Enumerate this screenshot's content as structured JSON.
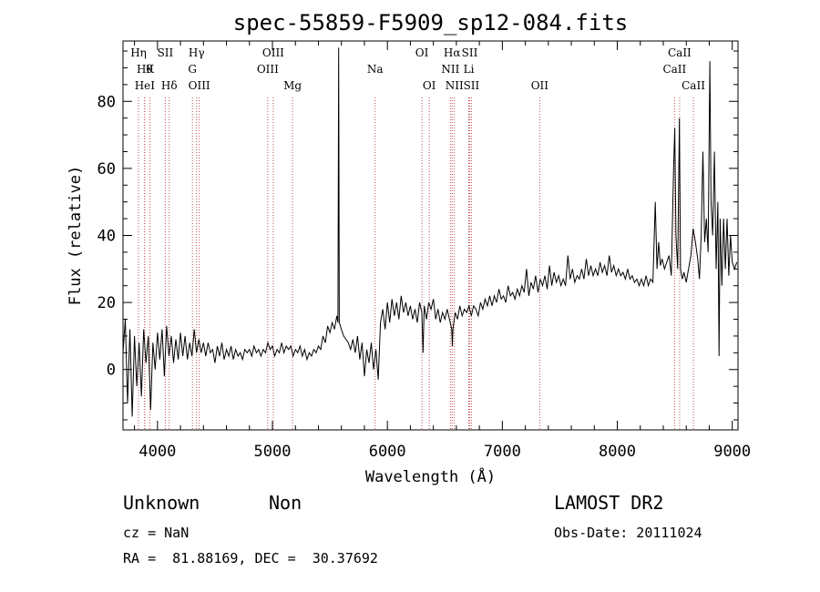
{
  "chart_data": {
    "type": "line",
    "title": "spec-55859-F5909_sp12-084.fits",
    "xlabel": "Wavelength (Å)",
    "ylabel": "Flux (relative)",
    "xlim": [
      3700,
      9050
    ],
    "ylim": [
      -18,
      98
    ],
    "xticks": [
      4000,
      5000,
      6000,
      7000,
      8000,
      9000
    ],
    "yticks": [
      0,
      20,
      40,
      60,
      80
    ],
    "grid": false,
    "line_color": "#000000",
    "marker_color": "#c0504d",
    "series": [
      {
        "values": [
          [
            3700,
            5
          ],
          [
            3720,
            15
          ],
          [
            3740,
            -10
          ],
          [
            3760,
            12
          ],
          [
            3780,
            -14
          ],
          [
            3800,
            10
          ],
          [
            3820,
            -5
          ],
          [
            3840,
            8
          ],
          [
            3860,
            -8
          ],
          [
            3880,
            12
          ],
          [
            3900,
            2
          ],
          [
            3920,
            10
          ],
          [
            3940,
            -12
          ],
          [
            3960,
            8
          ],
          [
            3980,
            0
          ],
          [
            4000,
            11
          ],
          [
            4020,
            3
          ],
          [
            4040,
            12
          ],
          [
            4060,
            -2
          ],
          [
            4080,
            13
          ],
          [
            4100,
            4
          ],
          [
            4120,
            10
          ],
          [
            4140,
            2
          ],
          [
            4160,
            9
          ],
          [
            4180,
            3
          ],
          [
            4200,
            11
          ],
          [
            4220,
            4
          ],
          [
            4240,
            10
          ],
          [
            4260,
            3
          ],
          [
            4280,
            8
          ],
          [
            4300,
            4
          ],
          [
            4320,
            12
          ],
          [
            4340,
            5
          ],
          [
            4360,
            9
          ],
          [
            4380,
            5
          ],
          [
            4400,
            8
          ],
          [
            4420,
            4
          ],
          [
            4440,
            8
          ],
          [
            4460,
            5
          ],
          [
            4480,
            6
          ],
          [
            4500,
            2
          ],
          [
            4520,
            7
          ],
          [
            4540,
            4
          ],
          [
            4560,
            8
          ],
          [
            4580,
            3
          ],
          [
            4600,
            6
          ],
          [
            4620,
            4
          ],
          [
            4640,
            7
          ],
          [
            4660,
            3
          ],
          [
            4680,
            6
          ],
          [
            4700,
            4
          ],
          [
            4720,
            5
          ],
          [
            4740,
            3
          ],
          [
            4760,
            6
          ],
          [
            4780,
            5
          ],
          [
            4800,
            6
          ],
          [
            4820,
            4
          ],
          [
            4840,
            7
          ],
          [
            4860,
            5
          ],
          [
            4880,
            6
          ],
          [
            4900,
            4
          ],
          [
            4920,
            6
          ],
          [
            4940,
            5
          ],
          [
            4960,
            8
          ],
          [
            4980,
            6
          ],
          [
            5000,
            7
          ],
          [
            5020,
            4
          ],
          [
            5040,
            6
          ],
          [
            5060,
            5
          ],
          [
            5080,
            8
          ],
          [
            5100,
            5
          ],
          [
            5120,
            7
          ],
          [
            5140,
            6
          ],
          [
            5160,
            7
          ],
          [
            5180,
            4
          ],
          [
            5200,
            6
          ],
          [
            5220,
            5
          ],
          [
            5240,
            7
          ],
          [
            5260,
            4
          ],
          [
            5280,
            6
          ],
          [
            5300,
            3
          ],
          [
            5320,
            5
          ],
          [
            5340,
            4
          ],
          [
            5360,
            6
          ],
          [
            5380,
            5
          ],
          [
            5400,
            7
          ],
          [
            5420,
            6
          ],
          [
            5440,
            10
          ],
          [
            5460,
            8
          ],
          [
            5480,
            13
          ],
          [
            5500,
            11
          ],
          [
            5520,
            14
          ],
          [
            5540,
            12
          ],
          [
            5560,
            16
          ],
          [
            5570,
            14
          ],
          [
            5576,
            96
          ],
          [
            5582,
            14
          ],
          [
            5600,
            12
          ],
          [
            5620,
            10
          ],
          [
            5640,
            9
          ],
          [
            5660,
            8
          ],
          [
            5680,
            6
          ],
          [
            5700,
            9
          ],
          [
            5720,
            5
          ],
          [
            5740,
            10
          ],
          [
            5760,
            3
          ],
          [
            5780,
            8
          ],
          [
            5800,
            -2
          ],
          [
            5820,
            6
          ],
          [
            5840,
            2
          ],
          [
            5860,
            8
          ],
          [
            5880,
            0
          ],
          [
            5900,
            6
          ],
          [
            5920,
            -3
          ],
          [
            5940,
            14
          ],
          [
            5960,
            18
          ],
          [
            5980,
            12
          ],
          [
            6000,
            20
          ],
          [
            6020,
            14
          ],
          [
            6040,
            21
          ],
          [
            6060,
            16
          ],
          [
            6080,
            20
          ],
          [
            6100,
            15
          ],
          [
            6120,
            22
          ],
          [
            6140,
            17
          ],
          [
            6160,
            20
          ],
          [
            6180,
            16
          ],
          [
            6200,
            19
          ],
          [
            6220,
            15
          ],
          [
            6240,
            18
          ],
          [
            6260,
            14
          ],
          [
            6280,
            20
          ],
          [
            6300,
            17
          ],
          [
            6310,
            5
          ],
          [
            6320,
            19
          ],
          [
            6340,
            15
          ],
          [
            6360,
            20
          ],
          [
            6380,
            18
          ],
          [
            6400,
            21
          ],
          [
            6420,
            15
          ],
          [
            6440,
            18
          ],
          [
            6460,
            14
          ],
          [
            6480,
            17
          ],
          [
            6500,
            15
          ],
          [
            6520,
            18
          ],
          [
            6540,
            15
          ],
          [
            6560,
            12
          ],
          [
            6565,
            7
          ],
          [
            6570,
            12
          ],
          [
            6590,
            17
          ],
          [
            6610,
            15
          ],
          [
            6630,
            19
          ],
          [
            6650,
            16
          ],
          [
            6670,
            18
          ],
          [
            6690,
            17
          ],
          [
            6710,
            19
          ],
          [
            6730,
            16
          ],
          [
            6750,
            19
          ],
          [
            6770,
            18
          ],
          [
            6790,
            16
          ],
          [
            6810,
            20
          ],
          [
            6830,
            18
          ],
          [
            6850,
            21
          ],
          [
            6870,
            19
          ],
          [
            6890,
            22
          ],
          [
            6910,
            19
          ],
          [
            6930,
            22
          ],
          [
            6950,
            20
          ],
          [
            6970,
            24
          ],
          [
            6990,
            21
          ],
          [
            7010,
            22
          ],
          [
            7030,
            20
          ],
          [
            7050,
            25
          ],
          [
            7070,
            22
          ],
          [
            7090,
            23
          ],
          [
            7110,
            21
          ],
          [
            7130,
            24
          ],
          [
            7150,
            22
          ],
          [
            7170,
            25
          ],
          [
            7190,
            23
          ],
          [
            7210,
            30
          ],
          [
            7230,
            22
          ],
          [
            7250,
            26
          ],
          [
            7270,
            24
          ],
          [
            7290,
            28
          ],
          [
            7310,
            23
          ],
          [
            7330,
            27
          ],
          [
            7350,
            25
          ],
          [
            7370,
            28
          ],
          [
            7390,
            24
          ],
          [
            7410,
            31
          ],
          [
            7430,
            25
          ],
          [
            7450,
            29
          ],
          [
            7470,
            26
          ],
          [
            7490,
            28
          ],
          [
            7510,
            25
          ],
          [
            7530,
            27
          ],
          [
            7550,
            25
          ],
          [
            7570,
            34
          ],
          [
            7590,
            27
          ],
          [
            7610,
            30
          ],
          [
            7630,
            26
          ],
          [
            7650,
            28
          ],
          [
            7670,
            27
          ],
          [
            7690,
            30
          ],
          [
            7710,
            27
          ],
          [
            7730,
            33
          ],
          [
            7750,
            28
          ],
          [
            7770,
            31
          ],
          [
            7790,
            28
          ],
          [
            7810,
            30
          ],
          [
            7830,
            28
          ],
          [
            7850,
            32
          ],
          [
            7870,
            29
          ],
          [
            7890,
            31
          ],
          [
            7910,
            28
          ],
          [
            7930,
            34
          ],
          [
            7950,
            29
          ],
          [
            7970,
            31
          ],
          [
            7990,
            28
          ],
          [
            8010,
            30
          ],
          [
            8030,
            28
          ],
          [
            8050,
            29
          ],
          [
            8070,
            27
          ],
          [
            8090,
            30
          ],
          [
            8110,
            27
          ],
          [
            8130,
            28
          ],
          [
            8150,
            26
          ],
          [
            8170,
            27
          ],
          [
            8190,
            25
          ],
          [
            8210,
            27
          ],
          [
            8230,
            25
          ],
          [
            8250,
            28
          ],
          [
            8270,
            25
          ],
          [
            8290,
            27
          ],
          [
            8310,
            26
          ],
          [
            8330,
            50
          ],
          [
            8345,
            30
          ],
          [
            8360,
            38
          ],
          [
            8375,
            31
          ],
          [
            8390,
            33
          ],
          [
            8410,
            30
          ],
          [
            8430,
            32
          ],
          [
            8450,
            34
          ],
          [
            8470,
            28
          ],
          [
            8490,
            60
          ],
          [
            8500,
            72
          ],
          [
            8510,
            40
          ],
          [
            8525,
            30
          ],
          [
            8540,
            75
          ],
          [
            8550,
            30
          ],
          [
            8565,
            27
          ],
          [
            8580,
            29
          ],
          [
            8600,
            26
          ],
          [
            8620,
            30
          ],
          [
            8640,
            34
          ],
          [
            8660,
            42
          ],
          [
            8680,
            38
          ],
          [
            8700,
            33
          ],
          [
            8715,
            27
          ],
          [
            8730,
            40
          ],
          [
            8745,
            65
          ],
          [
            8760,
            38
          ],
          [
            8775,
            45
          ],
          [
            8790,
            35
          ],
          [
            8805,
            92
          ],
          [
            8815,
            50
          ],
          [
            8830,
            40
          ],
          [
            8845,
            65
          ],
          [
            8860,
            30
          ],
          [
            8875,
            50
          ],
          [
            8885,
            4
          ],
          [
            8895,
            45
          ],
          [
            8910,
            25
          ],
          [
            8925,
            45
          ],
          [
            8940,
            30
          ],
          [
            8955,
            45
          ],
          [
            8970,
            28
          ],
          [
            8985,
            40
          ],
          [
            9000,
            32
          ],
          [
            9020,
            30
          ],
          [
            9040,
            32
          ]
        ]
      }
    ],
    "lines": [
      {
        "label": "Hη",
        "x": 3835,
        "row": 0
      },
      {
        "label": "Hθ",
        "x": 3889,
        "row": 1
      },
      {
        "label": "HeI",
        "x": 3889,
        "row": 2
      },
      {
        "label": "K",
        "x": 3934,
        "row": 1
      },
      {
        "label": "SII",
        "x": 4068,
        "row": 0
      },
      {
        "label": "Hδ",
        "x": 4102,
        "row": 2
      },
      {
        "label": "Hγ",
        "x": 4340,
        "row": 0
      },
      {
        "label": "G",
        "x": 4304,
        "row": 1
      },
      {
        "label": "OIII",
        "x": 4363,
        "row": 2
      },
      {
        "label": "OIII",
        "x": 5007,
        "row": 0
      },
      {
        "label": "OIII",
        "x": 4959,
        "row": 1
      },
      {
        "label": "Mg",
        "x": 5175,
        "row": 2
      },
      {
        "label": "Na",
        "x": 5893,
        "row": 1
      },
      {
        "label": "OI",
        "x": 6300,
        "row": 0
      },
      {
        "label": "OI",
        "x": 6364,
        "row": 2
      },
      {
        "label": "Hα",
        "x": 6563,
        "row": 0
      },
      {
        "label": "NII",
        "x": 6548,
        "row": 1
      },
      {
        "label": "NII",
        "x": 6583,
        "row": 2
      },
      {
        "label": "SII",
        "x": 6716,
        "row": 0
      },
      {
        "label": "Li",
        "x": 6708,
        "row": 1
      },
      {
        "label": "SII",
        "x": 6731,
        "row": 2
      },
      {
        "label": "OII",
        "x": 7325,
        "row": 2
      },
      {
        "label": "CaII",
        "x": 8542,
        "row": 0
      },
      {
        "label": "CaII",
        "x": 8498,
        "row": 1
      },
      {
        "label": "CaII",
        "x": 8662,
        "row": 2
      }
    ]
  },
  "info": {
    "class_label": "Unknown",
    "subclass_label": "Non",
    "survey": "LAMOST DR2",
    "redshift_text": "cz = NaN",
    "obs_date_text": "Obs-Date: 20111024",
    "coords_text": "RA =  81.88169, DEC =  30.37692"
  }
}
